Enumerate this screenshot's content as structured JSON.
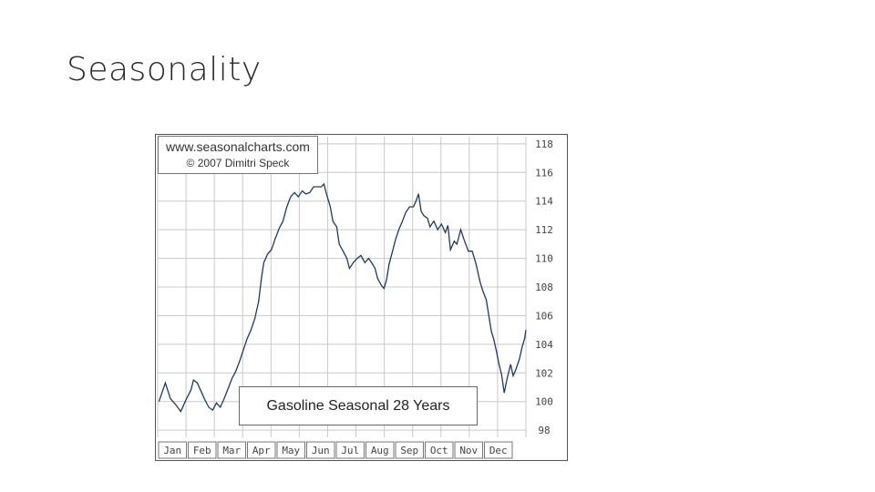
{
  "slide": {
    "title": "Seasonality"
  },
  "credit": {
    "site": "www.seasonalcharts.com",
    "copyright": "© 2007   Dimitri Speck"
  },
  "chart_data": {
    "type": "line",
    "title": "Gasoline Seasonal 28 Years",
    "xlabel": "",
    "ylabel": "",
    "months": [
      "Jan",
      "Feb",
      "Mar",
      "Apr",
      "May",
      "Jun",
      "Jul",
      "Aug",
      "Sep",
      "Oct",
      "Nov",
      "Dec"
    ],
    "yticks": [
      "118",
      "116",
      "114",
      "112",
      "110",
      "108",
      "106",
      "104",
      "102",
      "100",
      "98"
    ],
    "ylim": [
      97.5,
      118.5
    ],
    "grid": true,
    "series": [
      {
        "points": [
          [
            1,
            100
          ],
          [
            6,
            101.3
          ],
          [
            10,
            100.2
          ],
          [
            14,
            99.8
          ],
          [
            18,
            99.3
          ],
          [
            22,
            100.1
          ],
          [
            26,
            100.8
          ],
          [
            28,
            101.5
          ],
          [
            31,
            101.3
          ],
          [
            34,
            100.7
          ],
          [
            37,
            100.1
          ],
          [
            40,
            99.6
          ],
          [
            43,
            99.4
          ],
          [
            46,
            99.9
          ],
          [
            49,
            99.6
          ],
          [
            52,
            100.2
          ],
          [
            55,
            100.9
          ],
          [
            58,
            101.6
          ],
          [
            61,
            102.1
          ],
          [
            64,
            102.8
          ],
          [
            67,
            103.6
          ],
          [
            70,
            104.4
          ],
          [
            73,
            105.0
          ],
          [
            76,
            105.8
          ],
          [
            79,
            107.0
          ],
          [
            81,
            108.5
          ],
          [
            83,
            109.7
          ],
          [
            86,
            110.3
          ],
          [
            89,
            110.6
          ],
          [
            92,
            111.4
          ],
          [
            95,
            112.1
          ],
          [
            98,
            112.6
          ],
          [
            101,
            113.6
          ],
          [
            104,
            114.3
          ],
          [
            107,
            114.6
          ],
          [
            110,
            114.3
          ],
          [
            113,
            114.7
          ],
          [
            116,
            114.5
          ],
          [
            119,
            114.6
          ],
          [
            122,
            115.0
          ],
          [
            125,
            115.0
          ],
          [
            128,
            115.0
          ],
          [
            130,
            115.2
          ],
          [
            132,
            114.5
          ],
          [
            135,
            113.6
          ],
          [
            137,
            112.6
          ],
          [
            140,
            112.2
          ],
          [
            142,
            111.0
          ],
          [
            145,
            110.5
          ],
          [
            148,
            110.0
          ],
          [
            150,
            109.3
          ],
          [
            153,
            109.7
          ],
          [
            156,
            110.0
          ],
          [
            159,
            110.2
          ],
          [
            162,
            109.7
          ],
          [
            165,
            110.0
          ],
          [
            168,
            109.6
          ],
          [
            170,
            109.3
          ],
          [
            172,
            108.6
          ],
          [
            175,
            108.1
          ],
          [
            177,
            107.9
          ],
          [
            179,
            108.5
          ],
          [
            181,
            109.6
          ],
          [
            184,
            110.6
          ],
          [
            186,
            111.3
          ],
          [
            189,
            112.1
          ],
          [
            191,
            112.5
          ],
          [
            194,
            113.2
          ],
          [
            197,
            113.6
          ],
          [
            200,
            113.6
          ],
          [
            202,
            114.0
          ],
          [
            204,
            114.5
          ],
          [
            206,
            113.3
          ],
          [
            208,
            113.0
          ],
          [
            211,
            112.8
          ],
          [
            213,
            112.2
          ],
          [
            216,
            112.6
          ],
          [
            219,
            112.0
          ],
          [
            222,
            112.4
          ],
          [
            225,
            111.8
          ],
          [
            227,
            112.3
          ],
          [
            229,
            110.6
          ],
          [
            232,
            111.2
          ],
          [
            234,
            111.0
          ],
          [
            237,
            112.0
          ],
          [
            240,
            111.2
          ],
          [
            243,
            110.5
          ],
          [
            246,
            110.5
          ],
          [
            249,
            109.6
          ],
          [
            252,
            108.4
          ],
          [
            254,
            107.8
          ],
          [
            257,
            107.1
          ],
          [
            259,
            106.0
          ],
          [
            261,
            104.9
          ],
          [
            263,
            104.3
          ],
          [
            265,
            103.5
          ],
          [
            267,
            102.6
          ],
          [
            269,
            101.9
          ],
          [
            271,
            100.6
          ],
          [
            273,
            101.5
          ],
          [
            276,
            102.6
          ],
          [
            278,
            101.8
          ],
          [
            280,
            102.2
          ],
          [
            283,
            103.0
          ],
          [
            285,
            103.8
          ],
          [
            287,
            104.4
          ],
          [
            288,
            105.0
          ]
        ]
      }
    ]
  }
}
